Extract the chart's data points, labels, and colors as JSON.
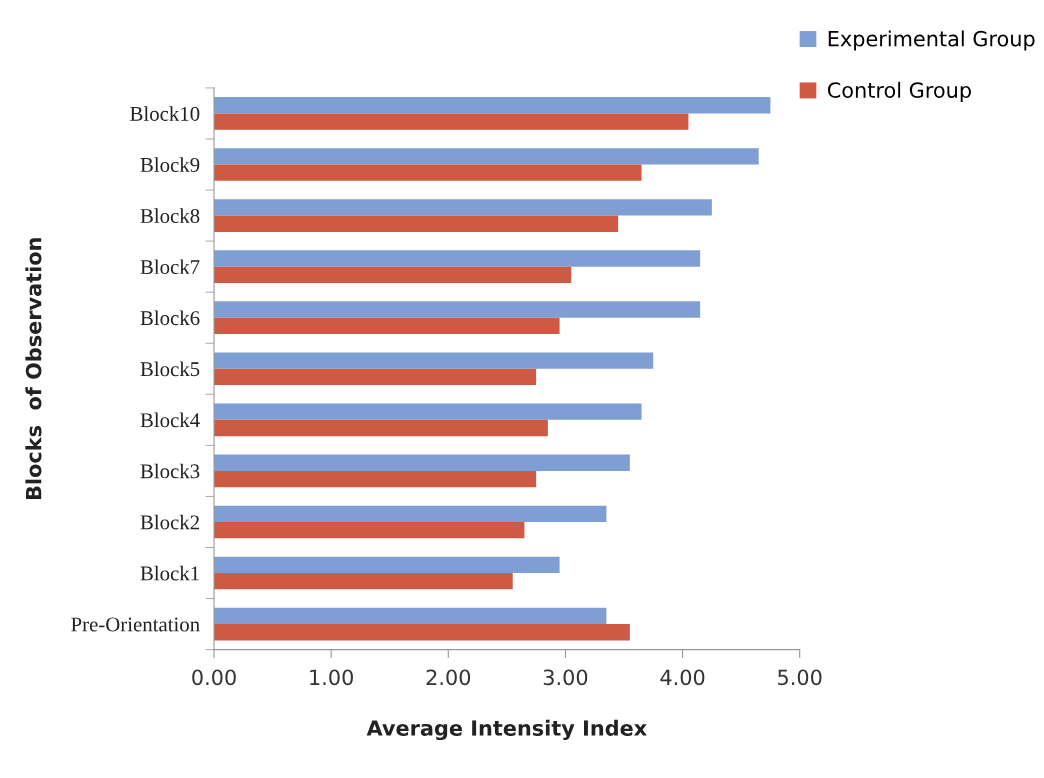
{
  "chart_data": {
    "type": "bar",
    "orientation": "horizontal",
    "xlabel": "Average Intensity Index",
    "ylabel": "Blocks  of Observation",
    "categories": [
      "Block10",
      "Block9",
      "Block8",
      "Block7",
      "Block6",
      "Block5",
      "Block4",
      "Block3",
      "Block2",
      "Block1",
      "Pre-Orientation"
    ],
    "series": [
      {
        "name": "Experimental Group",
        "color": "#7f9ed4",
        "values": [
          4.75,
          4.65,
          4.25,
          4.15,
          4.15,
          3.75,
          3.65,
          3.55,
          3.35,
          2.95,
          3.35
        ]
      },
      {
        "name": "Control Group",
        "color": "#cf5a44",
        "values": [
          4.05,
          3.65,
          3.45,
          3.05,
          2.95,
          2.75,
          2.85,
          2.75,
          2.65,
          2.55,
          3.55
        ]
      }
    ],
    "xlim": [
      0,
      5
    ],
    "xticks": [
      {
        "value": 0,
        "label": "0.00"
      },
      {
        "value": 1,
        "label": "1.00"
      },
      {
        "value": 2,
        "label": "2.00"
      },
      {
        "value": 3,
        "label": "3.00"
      },
      {
        "value": 4,
        "label": "4.00"
      },
      {
        "value": 5,
        "label": "5.00"
      }
    ],
    "legend": "top right"
  }
}
